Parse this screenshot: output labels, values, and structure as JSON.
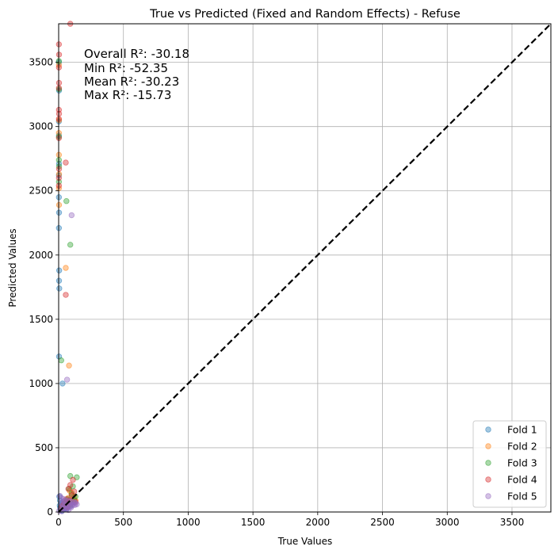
{
  "chart_data": {
    "type": "scatter",
    "title": "True vs Predicted (Fixed and Random Effects) - Refuse",
    "xlabel": "True Values",
    "ylabel": "Predicted Values",
    "xlim": [
      0,
      3800
    ],
    "ylim": [
      0,
      3800
    ],
    "xticks": [
      0,
      500,
      1000,
      1500,
      2000,
      2500,
      3000,
      3500
    ],
    "yticks": [
      0,
      500,
      1000,
      1500,
      2000,
      2500,
      3000,
      3500
    ],
    "grid": true,
    "legend_position": "lower right",
    "reference_line": {
      "style": "dashed",
      "color": "#000000",
      "from": [
        0,
        0
      ],
      "to": [
        3800,
        3800
      ]
    },
    "annotations": [
      "Overall R²: -30.18",
      "Min R²: -52.35",
      "Mean R²: -30.23",
      "Max R²: -15.73"
    ],
    "series": [
      {
        "name": "Fold 1",
        "color": "#1f77b4",
        "points": [
          [
            2,
            3500
          ],
          [
            3,
            3280
          ],
          [
            2,
            3040
          ],
          [
            2,
            2930
          ],
          [
            3,
            2710
          ],
          [
            2,
            2620
          ],
          [
            2,
            2450
          ],
          [
            3,
            2330
          ],
          [
            2,
            2210
          ],
          [
            4,
            1880
          ],
          [
            3,
            1800
          ],
          [
            5,
            1740
          ],
          [
            3,
            1210
          ],
          [
            30,
            1000
          ],
          [
            5,
            120
          ],
          [
            10,
            90
          ],
          [
            20,
            70
          ],
          [
            30,
            55
          ],
          [
            40,
            40
          ],
          [
            50,
            30
          ],
          [
            60,
            20
          ],
          [
            15,
            15
          ],
          [
            25,
            10
          ],
          [
            8,
            50
          ],
          [
            35,
            80
          ],
          [
            70,
            60
          ],
          [
            90,
            45
          ],
          [
            45,
            25
          ],
          [
            55,
            75
          ],
          [
            12,
            35
          ]
        ]
      },
      {
        "name": "Fold 2",
        "color": "#ff7f0e",
        "points": [
          [
            2,
            3480
          ],
          [
            3,
            3050
          ],
          [
            2,
            2950
          ],
          [
            2,
            2780
          ],
          [
            3,
            2630
          ],
          [
            2,
            2520
          ],
          [
            3,
            2390
          ],
          [
            55,
            1900
          ],
          [
            80,
            1140
          ],
          [
            85,
            165
          ],
          [
            100,
            150
          ],
          [
            120,
            120
          ],
          [
            60,
            90
          ],
          [
            75,
            110
          ],
          [
            40,
            60
          ],
          [
            95,
            70
          ],
          [
            130,
            90
          ],
          [
            20,
            30
          ],
          [
            65,
            45
          ],
          [
            110,
            80
          ]
        ]
      },
      {
        "name": "Fold 3",
        "color": "#2ca02c",
        "points": [
          [
            2,
            3510
          ],
          [
            3,
            3290
          ],
          [
            2,
            2920
          ],
          [
            2,
            2740
          ],
          [
            3,
            2690
          ],
          [
            2,
            2570
          ],
          [
            60,
            2420
          ],
          [
            90,
            2080
          ],
          [
            20,
            1180
          ],
          [
            90,
            280
          ],
          [
            140,
            270
          ],
          [
            110,
            200
          ],
          [
            80,
            180
          ],
          [
            100,
            140
          ],
          [
            130,
            120
          ],
          [
            70,
            100
          ],
          [
            50,
            70
          ],
          [
            120,
            95
          ],
          [
            30,
            40
          ],
          [
            95,
            60
          ]
        ]
      },
      {
        "name": "Fold 4",
        "color": "#d62728",
        "points": [
          [
            90,
            3800
          ],
          [
            2,
            3640
          ],
          [
            3,
            3560
          ],
          [
            2,
            3460
          ],
          [
            3,
            3340
          ],
          [
            2,
            3300
          ],
          [
            2,
            3130
          ],
          [
            3,
            3100
          ],
          [
            2,
            3060
          ],
          [
            2,
            2910
          ],
          [
            3,
            2670
          ],
          [
            2,
            2600
          ],
          [
            2,
            2540
          ],
          [
            55,
            2720
          ],
          [
            55,
            1690
          ],
          [
            110,
            250
          ],
          [
            90,
            210
          ],
          [
            75,
            180
          ],
          [
            120,
            160
          ],
          [
            100,
            130
          ],
          [
            60,
            100
          ],
          [
            85,
            90
          ],
          [
            45,
            70
          ],
          [
            130,
            80
          ],
          [
            25,
            45
          ],
          [
            70,
            40
          ]
        ]
      },
      {
        "name": "Fold 5",
        "color": "#9467bd",
        "points": [
          [
            100,
            2310
          ],
          [
            65,
            1030
          ],
          [
            10,
            125
          ],
          [
            20,
            110
          ],
          [
            40,
            100
          ],
          [
            60,
            90
          ],
          [
            80,
            85
          ],
          [
            100,
            80
          ],
          [
            120,
            75
          ],
          [
            30,
            60
          ],
          [
            50,
            55
          ],
          [
            70,
            50
          ],
          [
            90,
            45
          ],
          [
            110,
            60
          ],
          [
            130,
            70
          ],
          [
            15,
            30
          ],
          [
            35,
            25
          ],
          [
            55,
            20
          ],
          [
            75,
            15
          ],
          [
            95,
            35
          ],
          [
            5,
            10
          ],
          [
            25,
            5
          ],
          [
            45,
            40
          ],
          [
            65,
            30
          ],
          [
            85,
            65
          ],
          [
            105,
            50
          ],
          [
            125,
            55
          ],
          [
            140,
            60
          ],
          [
            18,
            70
          ],
          [
            38,
            85
          ]
        ]
      }
    ]
  }
}
